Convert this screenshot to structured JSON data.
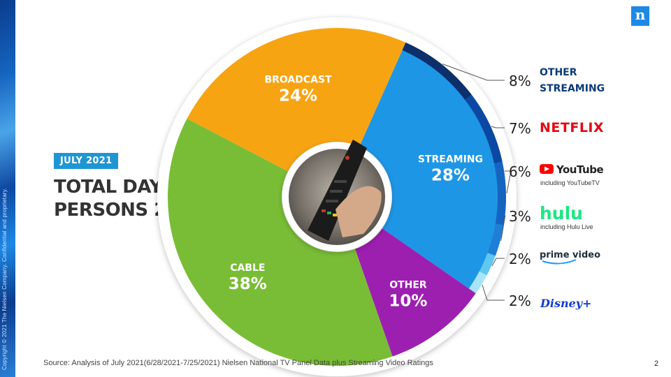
{
  "copyright": "Copyright © 2021 The Nielsen Company. Confidential and proprietary.",
  "logo_letter": "n",
  "badge": "JULY 2021",
  "subtitle_line1": "TOTAL DAY",
  "subtitle_line2": "PERSONS 2+",
  "source": "Source: Analysis of July 2021(6/28/2021-7/25/2021)  Nielsen National TV Panel Data plus Streaming Video Ratings",
  "page_number": "2",
  "chart_data": {
    "type": "pie",
    "title": "",
    "slices": [
      {
        "label": "STREAMING",
        "value": 28,
        "display": "28%",
        "color": "#1e96e6"
      },
      {
        "label": "OTHER",
        "value": 10,
        "display": "10%",
        "color": "#9c1fb0"
      },
      {
        "label": "CABLE",
        "value": 38,
        "display": "38%",
        "color": "#79bd36"
      },
      {
        "label": "BROADCAST",
        "value": 24,
        "display": "24%",
        "color": "#f7a413"
      }
    ],
    "streaming_breakdown": [
      {
        "label": "OTHER STREAMING",
        "value": 8,
        "display": "8%",
        "color": "#0d2f6b"
      },
      {
        "label": "NETFLIX",
        "value": 7,
        "display": "7%",
        "color": "#0b48a3"
      },
      {
        "label": "YouTube",
        "sublabel": "including YouTubeTV",
        "value": 6,
        "display": "6%",
        "color": "#1565c0"
      },
      {
        "label": "hulu",
        "sublabel": "including Hulu Live",
        "value": 3,
        "display": "3%",
        "color": "#1f7fd6"
      },
      {
        "label": "prime video",
        "value": 2,
        "display": "2%",
        "color": "#5ec8ef"
      },
      {
        "label": "Disney+",
        "value": 2,
        "display": "2%",
        "color": "#a6e4f7"
      }
    ]
  }
}
